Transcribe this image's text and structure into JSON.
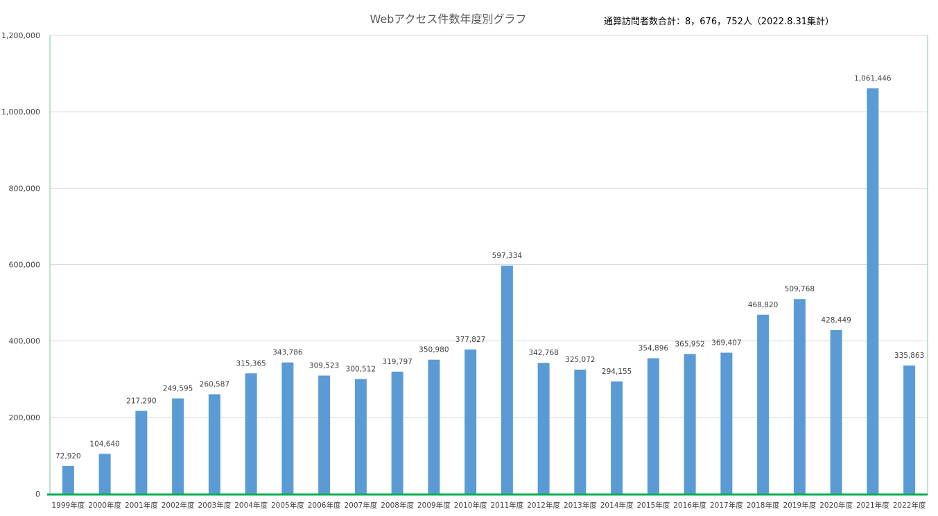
{
  "chart_data": {
    "type": "bar",
    "title": "Webアクセス件数年度別グラフ",
    "note": "通算訪問者数合計：8，676，752人（2022.8.31集計）",
    "xlabel": "",
    "ylabel": "",
    "ylim": [
      0,
      1200000
    ],
    "yticks": [
      "0",
      "200,000",
      "400,000",
      "600,000",
      "800,000",
      "1,000,000",
      "1,200,000"
    ],
    "ytick_values": [
      0,
      200000,
      400000,
      600000,
      800000,
      1000000,
      1200000
    ],
    "categories": [
      "1999年度",
      "2000年度",
      "2001年度",
      "2002年度",
      "2003年度",
      "2004年度",
      "2005年度",
      "2006年度",
      "2007年度",
      "2008年度",
      "2009年度",
      "2010年度",
      "2011年度",
      "2012年度",
      "2013年度",
      "2014年度",
      "2015年度",
      "2016年度",
      "2017年度",
      "2018年度",
      "2019年度",
      "2020年度",
      "2021年度",
      "2022年度"
    ],
    "values": [
      72920,
      104640,
      217290,
      249595,
      260587,
      315365,
      343786,
      309523,
      300512,
      319797,
      350980,
      377827,
      597334,
      342768,
      325072,
      294155,
      354896,
      365952,
      369407,
      468820,
      509768,
      428449,
      1061446,
      335863
    ],
    "data_labels": [
      "72,920",
      "104,640",
      "217,290",
      "249,595",
      "260,587",
      "315,365",
      "343,786",
      "309,523",
      "300,512",
      "319,797",
      "350,980",
      "377,827",
      "597,334",
      "342,768",
      "325,072",
      "294,155",
      "354,896",
      "365,952",
      "369,407",
      "468,820",
      "509,768",
      "428,449",
      "1,061,446",
      "335,863"
    ],
    "grid": true,
    "legend": "none",
    "colors": {
      "bar": "#5B9BD5",
      "grid": "#D9D9D9",
      "axis": "#00B050",
      "text": "#404040"
    }
  }
}
